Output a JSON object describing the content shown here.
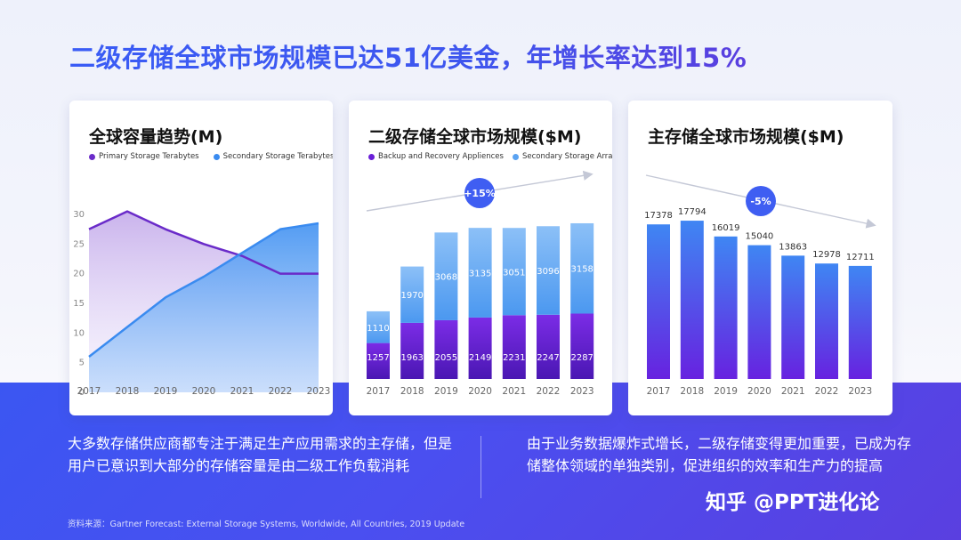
{
  "page": {
    "title": "二级存储全球市场规模已达51亿美金，年增长率达到15%",
    "left_text": "大多数存储供应商都专注于满足生产应用需求的主存储，但是用户已意识到大部分的存储容量是由二级工作负载消耗",
    "right_text": "由于业务数据爆炸式增长，二级存储变得更加重要，已成为存储整体领域的单独类别，促进组织的效率和生产力的提高",
    "source": "资料来源：Gartner Forecast: External Storage Systems, Worldwide, All Countries, 2019 Update",
    "watermark": "知乎 @PPT进化论"
  },
  "colors": {
    "title_blue": "#3a5cf5",
    "purple": "#6a1fd8",
    "light_blue": "#4d9bf2",
    "band": "#3b56f2"
  },
  "chart_data": [
    {
      "type": "area",
      "title": "全球容量趋势(M)",
      "categories": [
        "2017",
        "2018",
        "2019",
        "2020",
        "2021",
        "2022",
        "2023"
      ],
      "yticks": [
        "0",
        "5",
        "10",
        "15",
        "20",
        "25",
        "30"
      ],
      "ylim": [
        0,
        30
      ],
      "series": [
        {
          "name": "Primary Storage Terabytes",
          "color": "#6a2bc9",
          "values": [
            27.5,
            30.5,
            27.5,
            25,
            23,
            20,
            20
          ]
        },
        {
          "name": "Secondary Storage Terabytes",
          "color": "#3a8bf0",
          "values": [
            6,
            11,
            16,
            19.5,
            23.5,
            27.5,
            28.5
          ]
        }
      ]
    },
    {
      "type": "bar",
      "title": "二级存储全球市场规模($M)",
      "categories": [
        "2017",
        "2018",
        "2019",
        "2020",
        "2021",
        "2022",
        "2023"
      ],
      "badge": "+15%",
      "series": [
        {
          "name": "Backup and Recovery Appliences",
          "color": "#6a1fd8",
          "values": [
            1257,
            1963,
            2055,
            2149,
            2231,
            2247,
            2287
          ]
        },
        {
          "name": "Secondary Storage Arrays",
          "color": "#5aa3f2",
          "values": [
            1110,
            1970,
            3068,
            3135,
            3051,
            3096,
            3158
          ]
        }
      ]
    },
    {
      "type": "bar",
      "title": "主存储全球市场规模($M)",
      "categories": [
        "2017",
        "2018",
        "2019",
        "2020",
        "2021",
        "2022",
        "2023"
      ],
      "badge": "-5%",
      "values": [
        17378,
        17794,
        16019,
        15040,
        13863,
        12978,
        12711
      ]
    }
  ]
}
